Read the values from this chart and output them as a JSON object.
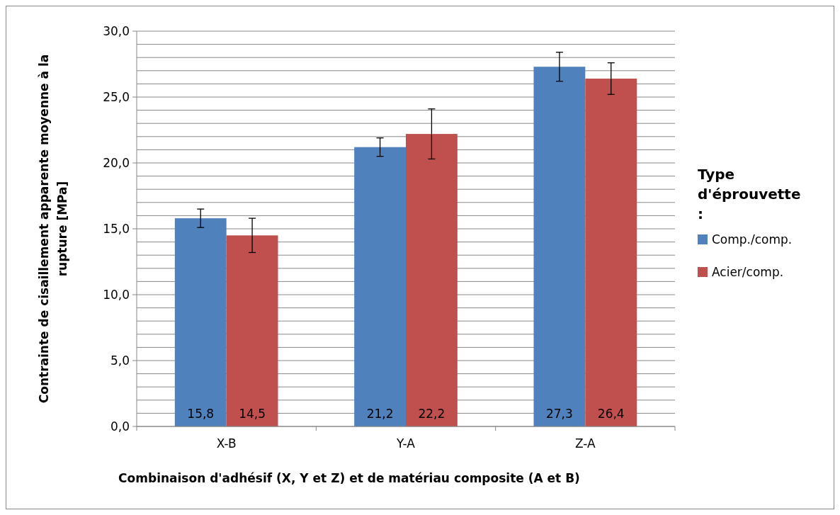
{
  "chart_data": {
    "type": "bar",
    "xlabel": "Combinaison d'adhésif  (X, Y et Z) et de matériau composite (A et B)",
    "ylabel": "Contrainte de cisaillement apparente moyenne à la rupture  [MPa]",
    "legend_title": "Type d'éprouvette :",
    "categories": [
      "X-B",
      "Y-A",
      "Z-A"
    ],
    "series": [
      {
        "name": "Comp./comp.",
        "color": "#4f81bd",
        "values": [
          15.8,
          21.2,
          27.3
        ],
        "errors": [
          0.7,
          0.7,
          1.1
        ],
        "value_labels": [
          "15,8",
          "21,2",
          "27,3"
        ]
      },
      {
        "name": "Acier/comp.",
        "color": "#c0504d",
        "values": [
          14.5,
          22.2,
          26.4
        ],
        "errors": [
          1.3,
          1.9,
          1.2
        ],
        "value_labels": [
          "14,5",
          "22,2",
          "26,4"
        ]
      }
    ],
    "ylim": [
      0,
      30
    ],
    "yticks": [
      {
        "value": 0,
        "label": "0,0"
      },
      {
        "value": 1,
        "label": null
      },
      {
        "value": 2,
        "label": null
      },
      {
        "value": 3,
        "label": null
      },
      {
        "value": 4,
        "label": null
      },
      {
        "value": 5,
        "label": "5,0"
      },
      {
        "value": 6,
        "label": null
      },
      {
        "value": 7,
        "label": null
      },
      {
        "value": 8,
        "label": null
      },
      {
        "value": 9,
        "label": null
      },
      {
        "value": 10,
        "label": "10,0"
      },
      {
        "value": 11,
        "label": null
      },
      {
        "value": 12,
        "label": null
      },
      {
        "value": 13,
        "label": null
      },
      {
        "value": 14,
        "label": null
      },
      {
        "value": 15,
        "label": "15,0"
      },
      {
        "value": 16,
        "label": null
      },
      {
        "value": 17,
        "label": null
      },
      {
        "value": 18,
        "label": null
      },
      {
        "value": 19,
        "label": null
      },
      {
        "value": 20,
        "label": "20,0"
      },
      {
        "value": 21,
        "label": null
      },
      {
        "value": 22,
        "label": null
      },
      {
        "value": 23,
        "label": null
      },
      {
        "value": 24,
        "label": null
      },
      {
        "value": 25,
        "label": "25,0"
      },
      {
        "value": 26,
        "label": null
      },
      {
        "value": 27,
        "label": null
      },
      {
        "value": 28,
        "label": null
      },
      {
        "value": 29,
        "label": null
      },
      {
        "value": 30,
        "label": "30,0"
      }
    ],
    "grid": "y",
    "legend": "right"
  }
}
